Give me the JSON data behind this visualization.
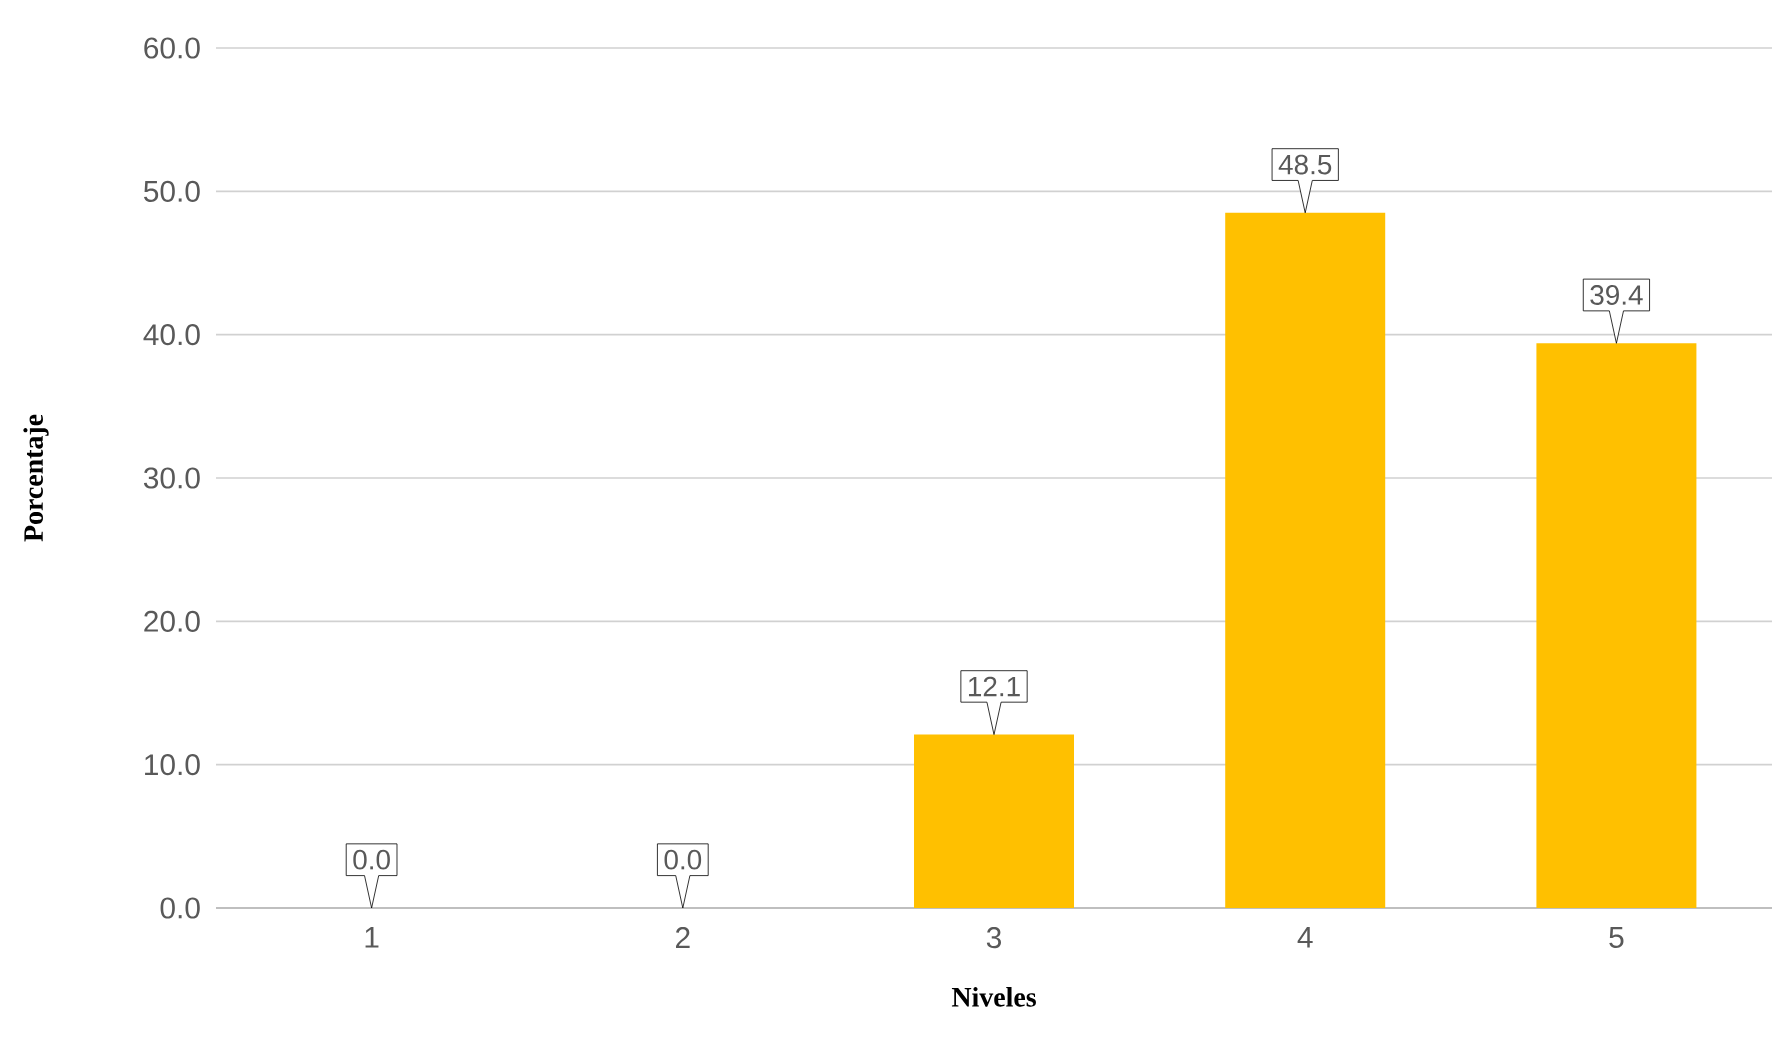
{
  "chart_data": {
    "type": "bar",
    "xlabel": "Niveles",
    "ylabel": "Porcentaje",
    "categories": [
      "1",
      "2",
      "3",
      "4",
      "5"
    ],
    "values": [
      0.0,
      0.0,
      12.1,
      48.5,
      39.4
    ],
    "color": "#ffc000",
    "ylim": [
      0,
      60
    ],
    "yticks": [
      {
        "value": 0,
        "label": "0.0"
      },
      {
        "value": 10,
        "label": "10.0"
      },
      {
        "value": 20,
        "label": "20.0"
      },
      {
        "value": 30,
        "label": "30.0"
      },
      {
        "value": 40,
        "label": "40.0"
      },
      {
        "value": 50,
        "label": "50.0"
      },
      {
        "value": 60,
        "label": "60.0"
      }
    ],
    "value_labels": [
      "0.0",
      "0.0",
      "12.1",
      "48.5",
      "39.4"
    ],
    "grid": "y"
  }
}
